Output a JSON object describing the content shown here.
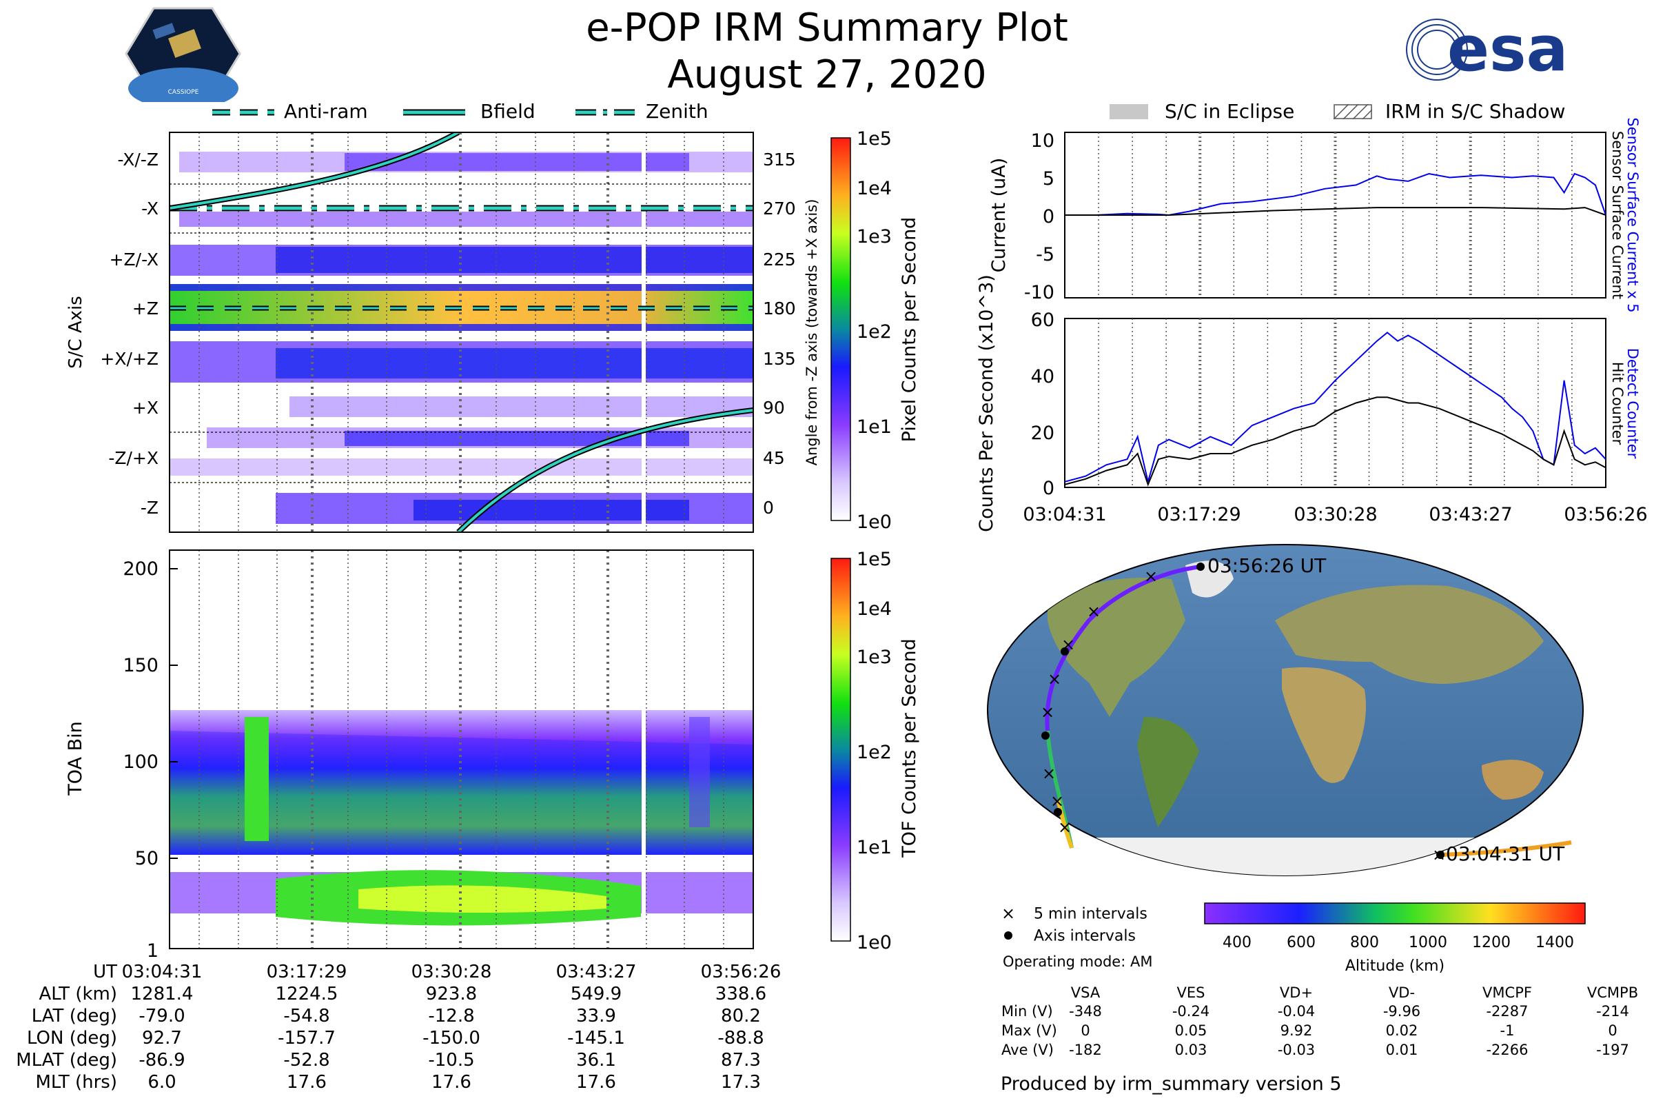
{
  "header": {
    "title_line1": "e-POP IRM Summary Plot",
    "title_line2": "August 27, 2020",
    "mission_logo_text": "CASSIOPE",
    "agency_logo_text": "esa"
  },
  "left_legend": {
    "anti_ram": "Anti-ram",
    "bfield": "Bfield",
    "zenith": "Zenith"
  },
  "right_legend": {
    "eclipse": "S/C in Eclipse",
    "shadow": "IRM in S/C Shadow"
  },
  "colors": {
    "line_teal": "#2fd3c0",
    "current_blue": "#0000ee",
    "black": "#000000"
  },
  "chart_data": [
    {
      "type": "heatmap",
      "id": "pixel-angle",
      "ylabel": "S/C Axis",
      "y2label": "Angle from -Z axis (towards +X axis)",
      "axis_labels": [
        "-X/-Z",
        "-X",
        "+Z/-X",
        "+Z",
        "+X/+Z",
        "+X",
        "-Z/+X",
        "-Z"
      ],
      "angle_ticks": [
        315,
        270,
        225,
        180,
        135,
        90,
        45,
        0
      ],
      "colorbar": {
        "label": "Pixel Counts per Second",
        "ticks": [
          "1e5",
          "1e4",
          "1e3",
          "1e2",
          "1e1",
          "1e0"
        ]
      }
    },
    {
      "type": "heatmap",
      "id": "toa",
      "ylabel": "TOA Bin",
      "yticks": [
        200,
        150,
        100,
        50,
        1
      ],
      "ylim": [
        1,
        210
      ],
      "colorbar": {
        "label": "TOF Counts per Second",
        "ticks": [
          "1e5",
          "1e4",
          "1e3",
          "1e2",
          "1e1",
          "1e0"
        ]
      }
    },
    {
      "type": "line",
      "id": "current",
      "ylabel": "Current (uA)",
      "yticks": [
        10,
        5,
        0,
        -5,
        -10
      ],
      "ylim": [
        -11,
        11
      ],
      "y2label_blue": "Sensor Surface Current x 5",
      "y2label_black": "Sensor Surface Current",
      "series": [
        {
          "name": "Sensor Surface Current x 5",
          "x": [
            0,
            3,
            6,
            9,
            10,
            12,
            15,
            18,
            22,
            25,
            28,
            30,
            31,
            33,
            35,
            37,
            40,
            43,
            45,
            47,
            48,
            49,
            50,
            51,
            52
          ],
          "values": [
            0,
            0,
            0.2,
            0.1,
            0,
            0.5,
            1.5,
            1.8,
            2.5,
            3.5,
            4,
            5.2,
            4.8,
            4.5,
            5.5,
            5,
            5.3,
            5,
            5.2,
            5,
            3,
            5.5,
            5,
            4,
            0
          ]
        },
        {
          "name": "Sensor Surface Current",
          "x": [
            0,
            10,
            20,
            30,
            40,
            48,
            50,
            52
          ],
          "values": [
            0,
            0,
            0.6,
            1,
            1,
            0.8,
            1,
            0
          ]
        }
      ]
    },
    {
      "type": "line",
      "id": "counts",
      "ylabel": "Counts Per Second (x10^3)",
      "yticks": [
        60,
        40,
        20,
        0
      ],
      "ylim": [
        0,
        60
      ],
      "y2label_blue": "Detect Counter",
      "y2label_black": "Hit Counter",
      "xtick_labels": [
        "03:04:31",
        "03:17:29",
        "03:30:28",
        "03:43:27",
        "03:56:26"
      ],
      "series": [
        {
          "name": "Detect Counter",
          "x": [
            0,
            2,
            4,
            6,
            7,
            8,
            9,
            10,
            12,
            14,
            16,
            18,
            20,
            22,
            24,
            26,
            28,
            30,
            31,
            32,
            33,
            34,
            36,
            38,
            40,
            42,
            43,
            44,
            45,
            46,
            47,
            48,
            49,
            50,
            51,
            52
          ],
          "values": [
            2,
            4,
            8,
            10,
            18,
            2,
            15,
            17,
            14,
            18,
            15,
            22,
            25,
            28,
            30,
            38,
            45,
            52,
            55,
            52,
            54,
            52,
            47,
            42,
            37,
            32,
            28,
            25,
            20,
            10,
            8,
            38,
            15,
            12,
            14,
            10
          ]
        },
        {
          "name": "Hit Counter",
          "x": [
            0,
            2,
            4,
            6,
            7,
            8,
            9,
            10,
            12,
            14,
            16,
            18,
            20,
            22,
            24,
            26,
            28,
            30,
            31,
            32,
            33,
            34,
            36,
            38,
            40,
            42,
            43,
            44,
            45,
            46,
            47,
            48,
            49,
            50,
            51,
            52
          ],
          "values": [
            1,
            3,
            6,
            8,
            12,
            1,
            10,
            11,
            10,
            12,
            12,
            15,
            17,
            20,
            22,
            27,
            30,
            32,
            32,
            31,
            30,
            30,
            28,
            25,
            22,
            19,
            17,
            15,
            13,
            10,
            8,
            20,
            10,
            8,
            9,
            7
          ]
        }
      ]
    }
  ],
  "ephemeris": {
    "labels": [
      "UT",
      "ALT (km)",
      "LAT (deg)",
      "LON (deg)",
      "MLAT (deg)",
      "MLT (hrs)"
    ],
    "columns": [
      [
        "03:04:31",
        "1281.4",
        "-79.0",
        "92.7",
        "-86.9",
        "6.0"
      ],
      [
        "03:17:29",
        "1224.5",
        "-54.8",
        "-157.7",
        "-52.8",
        "17.6"
      ],
      [
        "03:30:28",
        "923.8",
        "-12.8",
        "-150.0",
        "-10.5",
        "17.6"
      ],
      [
        "03:43:27",
        "549.9",
        "33.9",
        "-145.1",
        "36.1",
        "17.6"
      ],
      [
        "03:56:26",
        "338.6",
        "80.2",
        "-88.8",
        "87.3",
        "17.3"
      ]
    ]
  },
  "map": {
    "end_label": "03:56:26 UT",
    "start_label": "03:04:31 UT",
    "legend_5min": "5 min intervals",
    "legend_axis": "Axis intervals",
    "operating_mode": "Operating mode: AM",
    "altitude_label": "Altitude (km)",
    "altitude_ticks": [
      "400",
      "600",
      "800",
      "1000",
      "1200",
      "1400"
    ]
  },
  "voltages": {
    "headers": [
      "VSA",
      "VES",
      "VD+",
      "VD-",
      "VMCPF",
      "VCMPB"
    ],
    "rows": [
      {
        "label": "Min (V)",
        "values": [
          "-348",
          "-0.24",
          "-0.04",
          "-9.96",
          "-2287",
          "-214"
        ]
      },
      {
        "label": "Max (V)",
        "values": [
          "0",
          "0.05",
          "9.92",
          "0.02",
          "-1",
          "0"
        ]
      },
      {
        "label": "Ave (V)",
        "values": [
          "-182",
          "0.03",
          "-0.03",
          "0.01",
          "-2266",
          "-197"
        ]
      }
    ]
  },
  "footer": "Produced by irm_summary version 5"
}
